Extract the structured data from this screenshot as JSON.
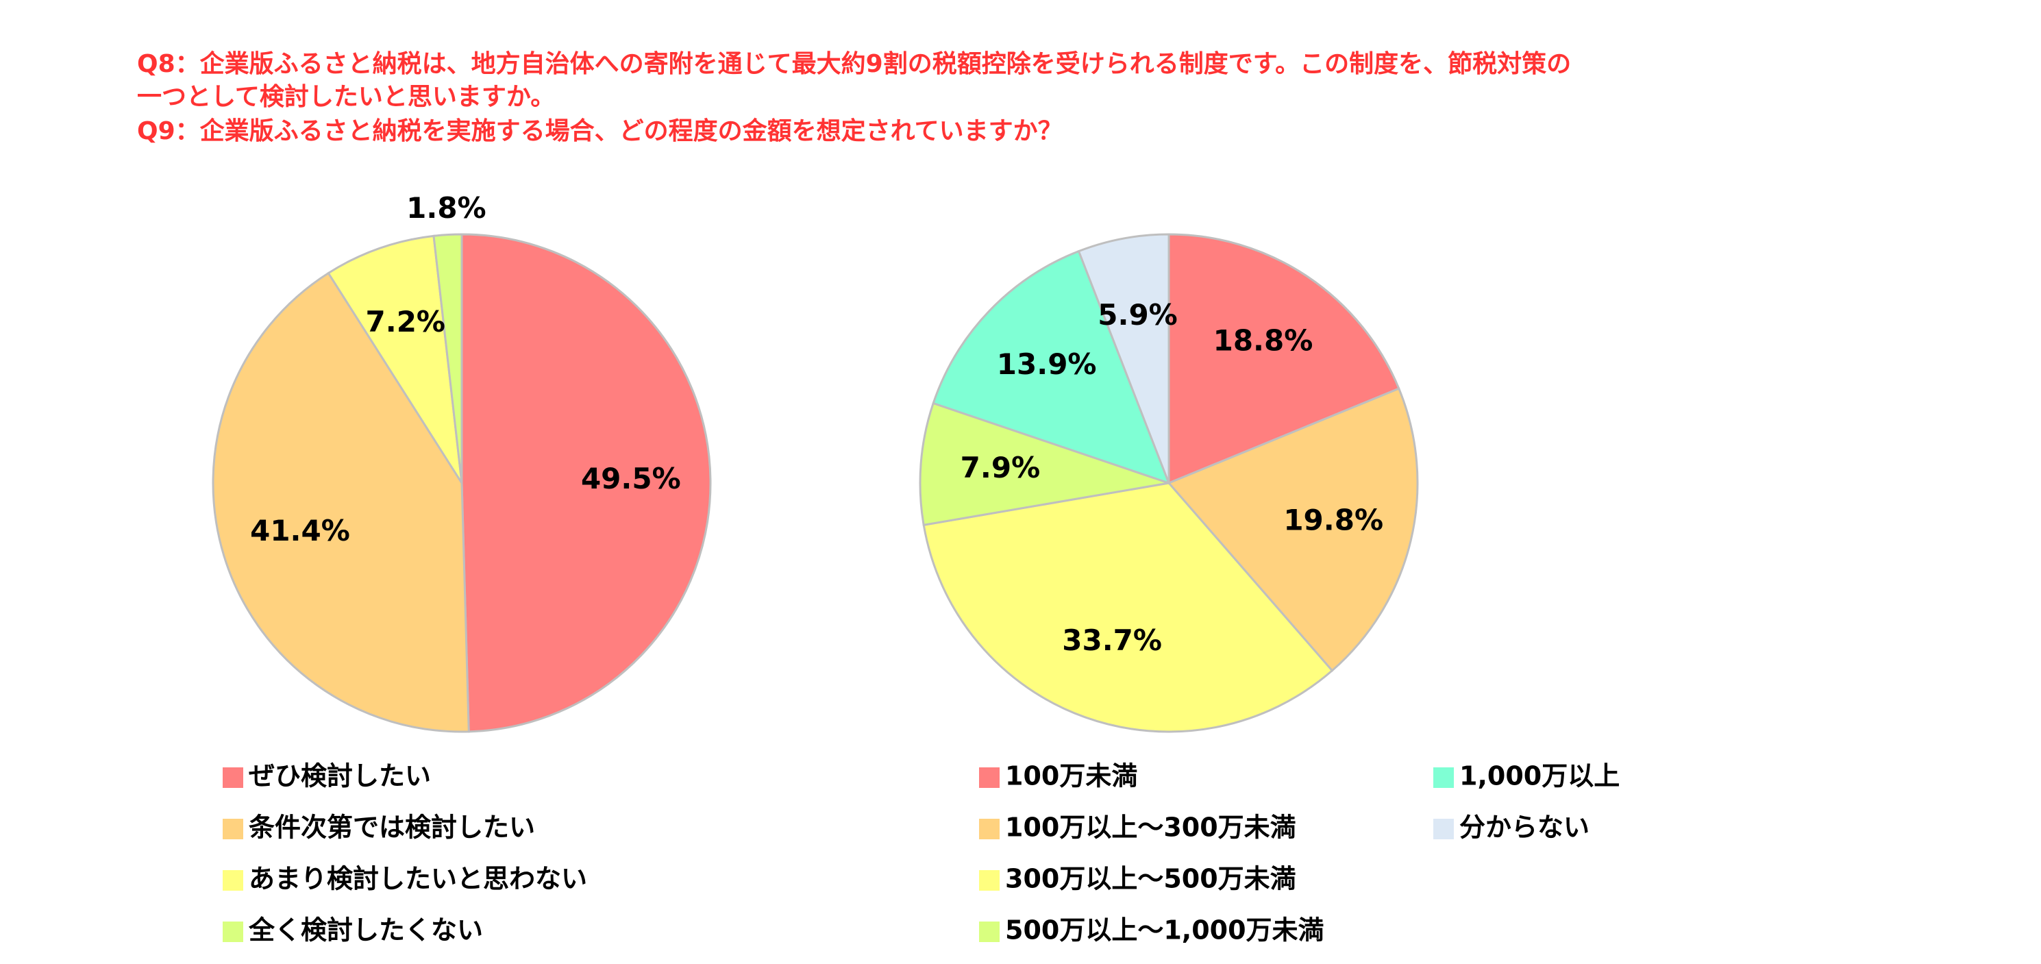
{
  "header": {
    "lines": [
      "Q8：企業版ふるさと納税は、地方自治体への寄附を通じて最大約9割の税額控除を受けられる制度です。この制度を、節税対策の",
      "一つとして検討したいと思いますか。",
      "Q9：企業版ふるさと納税を実施する場合、どの程度の金額を想定されていますか？"
    ]
  },
  "chart_data": [
    {
      "type": "pie",
      "categories": [
        "ぜひ検討したい",
        "条件次第では検討したい",
        "あまり検討したいと思わない",
        "全く検討したくない"
      ],
      "values": [
        49.5,
        41.4,
        7.2,
        1.8
      ],
      "value_labels": [
        "49.5%",
        "41.4%",
        "7.2%",
        "1.8%"
      ],
      "colors": [
        "#ff7f7f",
        "#ffd27f",
        "#ffff7f",
        "#d9ff7f"
      ]
    },
    {
      "type": "pie",
      "categories": [
        "100万未満",
        "100万以上～300万未満",
        "300万以上～500万未満",
        "500万以上～1,000万未満",
        "1,000万以上",
        "分からない"
      ],
      "values": [
        18.8,
        19.8,
        33.7,
        7.9,
        13.9,
        5.9
      ],
      "value_labels": [
        "18.8%",
        "19.8%",
        "33.7%",
        "7.9%",
        "13.9%",
        "5.9%"
      ],
      "colors": [
        "#ff7f7f",
        "#ffd27f",
        "#ffff7f",
        "#d9ff7f",
        "#7fffd4",
        "#dce8f5"
      ]
    }
  ]
}
